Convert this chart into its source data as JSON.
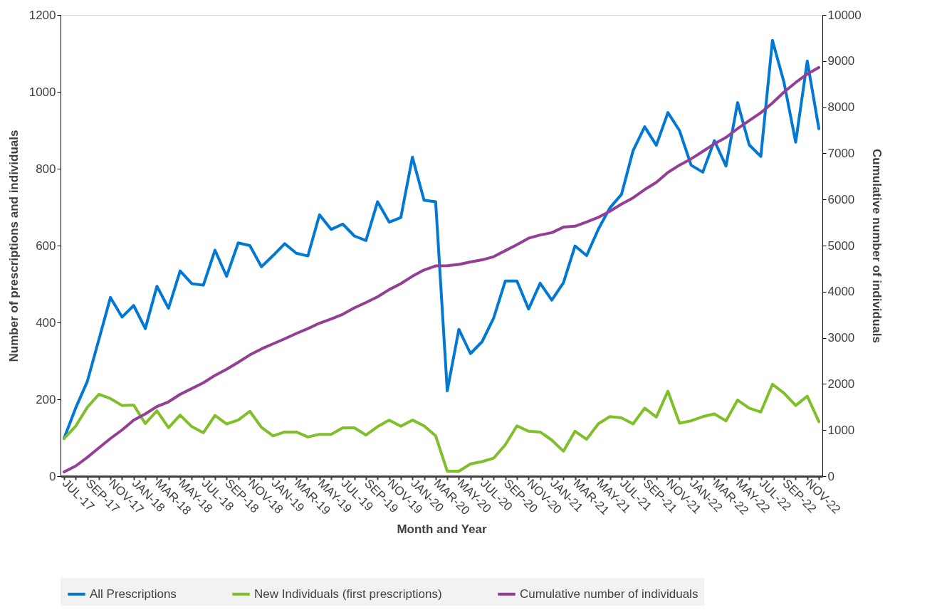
{
  "chart_data": {
    "type": "line",
    "xlabel": "Month and Year",
    "ylabel": "Number of prescriptions and individuals",
    "y2label": "Cumulative number of individuals",
    "categories": [
      "JUL-17",
      null,
      "SEP-17",
      null,
      "NOV-17",
      null,
      "JAN-18",
      null,
      "MAR-18",
      null,
      "MAY-18",
      null,
      "JUL-18",
      null,
      "SEP-18",
      null,
      "NOV-18",
      null,
      "JAN-19",
      null,
      "MAR-19",
      null,
      "MAY-19",
      null,
      "JUL-19",
      null,
      "SEP-19",
      null,
      "NOV-19",
      null,
      "JAN-20",
      null,
      "MAR-20",
      null,
      "MAY-20",
      null,
      "JUL-20",
      null,
      "SEP-20",
      null,
      "NOV-20",
      null,
      "JAN-21",
      null,
      "MAR-21",
      null,
      "MAY-21",
      null,
      "JUL-21",
      null,
      "SEP-21",
      null,
      "NOV-21",
      null,
      "JAN-22",
      null,
      "MAR-22",
      null,
      "MAY-22",
      null,
      "JUL-22",
      null,
      "SEP-22",
      null,
      "NOV-22",
      null
    ],
    "series": [
      {
        "name": "All Prescriptions",
        "color": "#0078d4",
        "axis": "y",
        "values": [
          98,
          177,
          246,
          355,
          465,
          414,
          444,
          384,
          494,
          437,
          534,
          501,
          497,
          588,
          520,
          607,
          600,
          545,
          574,
          605,
          580,
          573,
          680,
          642,
          656,
          625,
          613,
          714,
          661,
          673,
          830,
          718,
          714,
          222,
          382,
          319,
          350,
          412,
          508,
          508,
          435,
          502,
          458,
          503,
          599,
          574,
          642,
          698,
          733,
          847,
          909,
          861,
          946,
          899,
          809,
          791,
          873,
          807,
          972,
          862,
          832,
          1134,
          1024,
          869,
          1080,
          904
        ]
      },
      {
        "name": "New Individuals (first prescriptions)",
        "color": "#7fbf29",
        "axis": "y",
        "values": [
          98,
          130,
          179,
          213,
          202,
          184,
          185,
          137,
          170,
          126,
          159,
          129,
          113,
          158,
          136,
          146,
          169,
          127,
          105,
          115,
          115,
          102,
          109,
          109,
          126,
          126,
          107,
          129,
          146,
          130,
          146,
          131,
          105,
          13,
          13,
          32,
          38,
          47,
          82,
          131,
          117,
          115,
          94,
          65,
          117,
          96,
          136,
          155,
          152,
          136,
          177,
          154,
          221,
          138,
          144,
          155,
          162,
          144,
          198,
          177,
          167,
          239,
          216,
          184,
          208,
          142
        ]
      },
      {
        "name": "Cumulative number of individuals",
        "color": "#943f96",
        "axis": "y2",
        "values": [
          93,
          220,
          407,
          614,
          818,
          1003,
          1216,
          1350,
          1510,
          1612,
          1775,
          1900,
          2025,
          2185,
          2320,
          2470,
          2630,
          2760,
          2870,
          2978,
          3094,
          3200,
          3317,
          3410,
          3510,
          3650,
          3765,
          3890,
          4045,
          4175,
          4335,
          4470,
          4560,
          4565,
          4590,
          4645,
          4690,
          4760,
          4890,
          5020,
          5160,
          5230,
          5280,
          5400,
          5420,
          5510,
          5610,
          5745,
          5900,
          6035,
          6215,
          6370,
          6585,
          6745,
          6880,
          7040,
          7205,
          7345,
          7535,
          7710,
          7880,
          8090,
          8330,
          8535,
          8720,
          8860
        ]
      }
    ],
    "ylim": [
      0,
      1200
    ],
    "yticks": [
      0,
      200,
      400,
      600,
      800,
      1000,
      1200
    ],
    "y2lim": [
      0,
      10000
    ],
    "y2ticks": [
      0,
      1000,
      2000,
      3000,
      4000,
      5000,
      6000,
      7000,
      8000,
      9000,
      10000
    ],
    "grid": false,
    "legend": "bottom"
  }
}
